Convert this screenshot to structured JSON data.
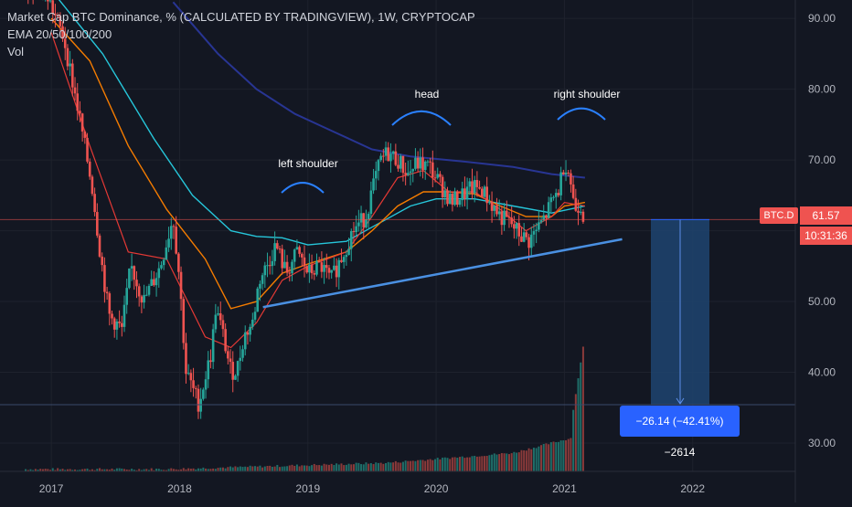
{
  "legend": {
    "title": "Market Cap BTC Dominance, % (CALCULATED BY TRADINGVIEW), 1W, CRYPTOCAP",
    "indicator": "EMA 20/50/100/200",
    "volume": "Vol"
  },
  "price_label": {
    "value": "61.57",
    "timer": "10:31:36",
    "symbol": "BTC.D"
  },
  "measure": {
    "text": "−26.14 (−42.41%) −2614",
    "from": 61.57,
    "to": 35.43
  },
  "annotations": {
    "left": "left shoulder",
    "head": "head",
    "right": "right shoulder"
  },
  "colors": {
    "background": "#131722",
    "grid": "#1e222d",
    "up": "#26a69a",
    "down": "#ef5350",
    "ema20": "#e53935",
    "ema50": "#f57c00",
    "ema100": "#26c6da",
    "ema200": "#283593",
    "neckline": "#4a90e2",
    "measure_fill": "#1e4470",
    "measure_line": "#2962ff",
    "axis_text": "#b2b5be"
  },
  "chart_data": {
    "type": "candlestick",
    "y_axis": {
      "ticks": [
        30,
        40,
        50,
        60,
        70,
        80,
        90
      ],
      "tick_labels": [
        "30.00",
        "40.00",
        "50.00",
        "60.00",
        "70.00",
        "80.00",
        "90.00"
      ],
      "ylim": [
        26,
        92.6
      ]
    },
    "x_axis": {
      "ticks": [
        2017,
        2018,
        2019,
        2020,
        2021,
        2022
      ],
      "tick_labels": [
        "2017",
        "2018",
        "2019",
        "2020",
        "2021",
        "2022"
      ],
      "xlim": [
        2016.6,
        2022.8
      ]
    },
    "trendline": {
      "from": [
        2018.65,
        49.2
      ],
      "to": [
        2021.45,
        58.8
      ]
    },
    "shoulder_arcs": [
      {
        "name": "left shoulder",
        "x": 2018.7
      },
      {
        "name": "head",
        "x": 2019.65
      },
      {
        "name": "right shoulder",
        "x": 2021.0
      }
    ],
    "anchors": [
      [
        2016.8,
        95
      ],
      [
        2016.95,
        94
      ],
      [
        2017.1,
        87
      ],
      [
        2017.22,
        76
      ],
      [
        2017.32,
        66
      ],
      [
        2017.38,
        57
      ],
      [
        2017.45,
        48
      ],
      [
        2017.55,
        46
      ],
      [
        2017.62,
        55
      ],
      [
        2017.72,
        50
      ],
      [
        2017.85,
        55
      ],
      [
        2017.95,
        62
      ],
      [
        2018.0,
        53
      ],
      [
        2018.05,
        40
      ],
      [
        2018.15,
        35.5
      ],
      [
        2018.25,
        43
      ],
      [
        2018.28,
        49
      ],
      [
        2018.33,
        46
      ],
      [
        2018.4,
        40
      ],
      [
        2018.45,
        40.5
      ],
      [
        2018.5,
        45
      ],
      [
        2018.57,
        47
      ],
      [
        2018.62,
        53
      ],
      [
        2018.68,
        55
      ],
      [
        2018.75,
        58
      ],
      [
        2018.83,
        54
      ],
      [
        2018.92,
        57
      ],
      [
        2019.0,
        54
      ],
      [
        2019.1,
        55
      ],
      [
        2019.18,
        53
      ],
      [
        2019.28,
        57
      ],
      [
        2019.35,
        60
      ],
      [
        2019.45,
        62
      ],
      [
        2019.52,
        67
      ],
      [
        2019.57,
        70
      ],
      [
        2019.62,
        71
      ],
      [
        2019.7,
        70
      ],
      [
        2019.78,
        68
      ],
      [
        2019.85,
        69.5
      ],
      [
        2019.95,
        69
      ],
      [
        2020.05,
        66
      ],
      [
        2020.12,
        64
      ],
      [
        2020.2,
        65
      ],
      [
        2020.28,
        66
      ],
      [
        2020.35,
        66
      ],
      [
        2020.42,
        64
      ],
      [
        2020.5,
        62
      ],
      [
        2020.58,
        61
      ],
      [
        2020.65,
        59.5
      ],
      [
        2020.72,
        58.5
      ],
      [
        2020.78,
        60
      ],
      [
        2020.85,
        62
      ],
      [
        2020.9,
        64
      ],
      [
        2020.96,
        66
      ],
      [
        2021.0,
        70
      ],
      [
        2021.04,
        68
      ],
      [
        2021.08,
        63
      ],
      [
        2021.12,
        64
      ],
      [
        2021.16,
        61.57
      ]
    ],
    "ema": {
      "ema20": [
        [
          2017.0,
          88
        ],
        [
          2017.3,
          72
        ],
        [
          2017.6,
          57
        ],
        [
          2017.9,
          56
        ],
        [
          2018.2,
          45
        ],
        [
          2018.4,
          43.5
        ],
        [
          2018.6,
          47
        ],
        [
          2018.8,
          53
        ],
        [
          2019.0,
          55
        ],
        [
          2019.3,
          57
        ],
        [
          2019.5,
          62
        ],
        [
          2019.7,
          67.5
        ],
        [
          2019.9,
          68.5
        ],
        [
          2020.1,
          65.5
        ],
        [
          2020.3,
          65.5
        ],
        [
          2020.5,
          63
        ],
        [
          2020.7,
          60
        ],
        [
          2020.9,
          62
        ],
        [
          2021.0,
          64
        ],
        [
          2021.16,
          63.5
        ]
      ],
      "ema50": [
        [
          2017.0,
          90
        ],
        [
          2017.3,
          84
        ],
        [
          2017.6,
          72
        ],
        [
          2017.9,
          63
        ],
        [
          2018.2,
          56
        ],
        [
          2018.4,
          49
        ],
        [
          2018.6,
          50
        ],
        [
          2018.8,
          54
        ],
        [
          2019.0,
          55.3
        ],
        [
          2019.3,
          57
        ],
        [
          2019.5,
          60
        ],
        [
          2019.7,
          63.5
        ],
        [
          2019.9,
          65.5
        ],
        [
          2020.1,
          65.5
        ],
        [
          2020.3,
          65.2
        ],
        [
          2020.5,
          63.5
        ],
        [
          2020.7,
          62
        ],
        [
          2020.9,
          62
        ],
        [
          2021.0,
          63.5
        ],
        [
          2021.16,
          64
        ]
      ],
      "ema100": [
        [
          2017.0,
          94
        ],
        [
          2017.4,
          85
        ],
        [
          2017.8,
          73
        ],
        [
          2018.1,
          65
        ],
        [
          2018.4,
          60
        ],
        [
          2018.6,
          59.2
        ],
        [
          2018.8,
          59
        ],
        [
          2019.0,
          58
        ],
        [
          2019.3,
          58.5
        ],
        [
          2019.5,
          60.5
        ],
        [
          2019.8,
          63.5
        ],
        [
          2020.0,
          64.5
        ],
        [
          2020.3,
          64.5
        ],
        [
          2020.6,
          63.5
        ],
        [
          2020.9,
          62.5
        ],
        [
          2021.16,
          63.5
        ]
      ],
      "ema200": [
        [
          2017.95,
          92.3
        ],
        [
          2018.3,
          85
        ],
        [
          2018.6,
          80
        ],
        [
          2018.9,
          76.5
        ],
        [
          2019.2,
          74
        ],
        [
          2019.5,
          71.5
        ],
        [
          2019.8,
          70.5
        ],
        [
          2020.2,
          69.8
        ],
        [
          2020.6,
          69
        ],
        [
          2020.9,
          68
        ],
        [
          2021.16,
          67.5
        ]
      ]
    },
    "volume": {
      "unit": "relative",
      "ylim": [
        0,
        1
      ],
      "values": "generated weekly series rising sharply into 2021"
    }
  }
}
